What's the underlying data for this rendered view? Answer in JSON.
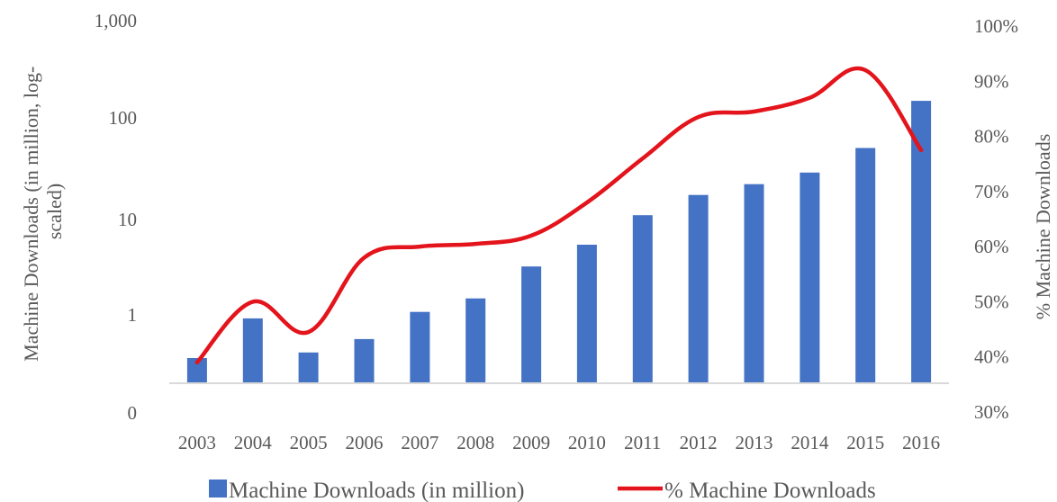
{
  "chart_data": {
    "type": "bar",
    "categories": [
      "2003",
      "2004",
      "2005",
      "2006",
      "2007",
      "2008",
      "2009",
      "2010",
      "2011",
      "2012",
      "2013",
      "2014",
      "2015",
      "2016"
    ],
    "series": [
      {
        "name": "Machine Downloads (in million)",
        "type": "bar",
        "axis": "left",
        "color": "#4472C4",
        "values": [
          0.35,
          0.9,
          0.4,
          0.55,
          1.05,
          1.45,
          3.1,
          5.2,
          10.5,
          17,
          22,
          29,
          52,
          160
        ]
      },
      {
        "name": "% Machine Downloads",
        "type": "line",
        "axis": "right",
        "color": "#E3141B",
        "values": [
          39,
          50,
          44.5,
          58,
          60,
          60.5,
          62,
          68,
          76,
          83.5,
          84.5,
          87,
          92,
          77.5
        ]
      }
    ],
    "left_axis": {
      "title": "Machine Downloads (in million, log-scaled)",
      "title_lines": [
        "Machine Downloads (in million, log-",
        "scaled)"
      ],
      "scale": "log",
      "ticks": [
        "1,000",
        "100",
        "10",
        "1",
        "0"
      ]
    },
    "right_axis": {
      "title": "% Machine Downloads",
      "ylim": [
        30,
        100
      ],
      "ticks": [
        "100%",
        "90%",
        "80%",
        "70%",
        "60%",
        "50%",
        "40%",
        "30%"
      ]
    },
    "legend": {
      "position": "bottom",
      "items": [
        "Machine Downloads (in million)",
        "% Machine Downloads"
      ]
    },
    "grid": false
  }
}
